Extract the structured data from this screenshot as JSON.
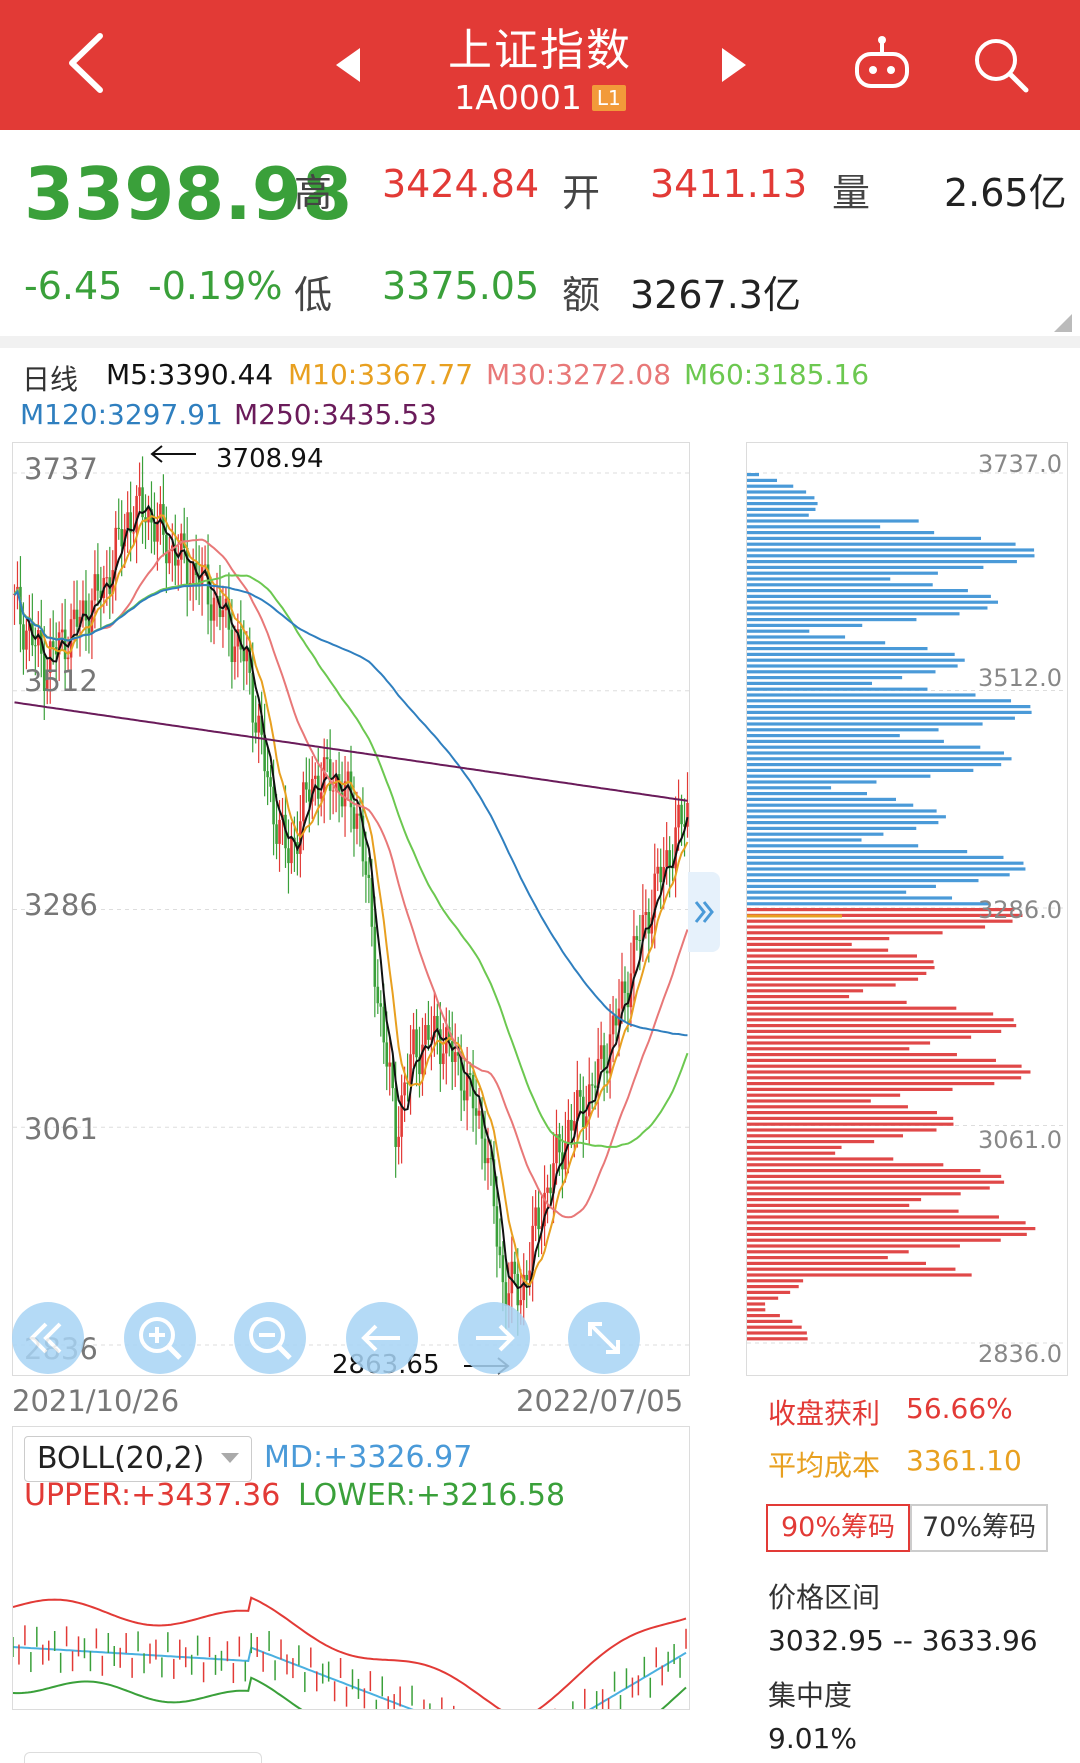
{
  "header": {
    "title": "上证指数",
    "code": "1A0001",
    "level_badge": "L1",
    "icons": [
      "back-arrow-icon",
      "prev-arrow-icon",
      "next-arrow-icon",
      "robot-icon",
      "search-icon"
    ]
  },
  "quote": {
    "price": "3398.98",
    "change": "-6.45",
    "change_pct": "-0.19%",
    "high_label": "高",
    "high": "3424.84",
    "open_label": "开",
    "open": "3411.13",
    "volume_label": "量",
    "volume": "2.65亿",
    "low_label": "低",
    "low": "3375.05",
    "amount_label": "额",
    "amount": "3267.3亿"
  },
  "ma_legend": {
    "period": "日线",
    "m5": "M5:3390.44",
    "m10": "M10:3367.77",
    "m30": "M30:3272.08",
    "m60": "M60:3185.16",
    "m120": "M120:3297.91",
    "m250": "M250:3435.53"
  },
  "kline": {
    "y_labels": [
      "3737",
      "3512",
      "3286",
      "3061",
      "2836"
    ],
    "high_annotation": "3708.94",
    "low_annotation": "2863.65",
    "start_date": "2021/10/26",
    "end_date": "2022/07/05",
    "expand_icon": "double-chevron-right-icon",
    "controls": [
      "double-left-icon",
      "zoom-in-icon",
      "zoom-out-icon",
      "left-arrow-icon",
      "right-arrow-icon",
      "fullscreen-icon"
    ]
  },
  "chips": {
    "price_labels": [
      "3737.0",
      "3512.0",
      "3286.0",
      "3061.0",
      "2836.0"
    ],
    "profit_label": "收盘获利",
    "profit_value": "56.66%",
    "avg_cost_label": "平均成本",
    "avg_cost_value": "3361.10",
    "tab_90": "90%筹码",
    "tab_70": "70%筹码",
    "range_label": "价格区间",
    "range_value": "3032.95 -- 3633.96",
    "concentration_label": "集中度",
    "concentration_value": "9.01%"
  },
  "boll": {
    "selector": "BOLL(20,2)",
    "md": "MD:+3326.97",
    "upper": "UPPER:+3437.36",
    "lower": "LOWER:+3216.58"
  },
  "colors": {
    "header_bg": "#e23a36",
    "up": "#e23a36",
    "down": "#3aa03a",
    "m5": "#111111",
    "m10": "#e8a020",
    "m30": "#e87878",
    "m60": "#6cc850",
    "m120": "#2f7fbf",
    "m250": "#6a1b5a",
    "chip_up": "#4a9ad8",
    "chip_down": "#e04848"
  }
}
